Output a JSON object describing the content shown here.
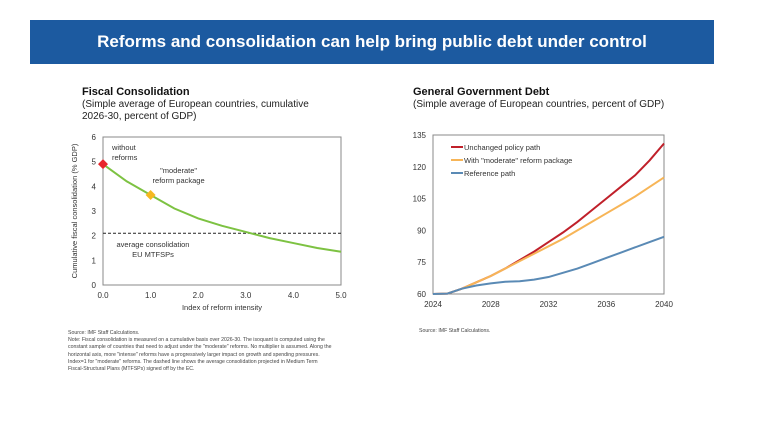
{
  "banner": {
    "title": "Reforms and consolidation can help bring public debt under control"
  },
  "left": {
    "title": "Fiscal Consolidation",
    "subtitle": "(Simple average of European countries, cumulative 2026-30, percent of GDP)",
    "source": "Source: IMF Staff Calculations.",
    "note": "Note: Fiscal consolidation is measured on a cumulative basis over 2026-30. The isoquant is computed using the constant sample of countries that need to adjust under the \"moderate\" reforms. No multiplier is assumed. Along the horizontal axis, more \"intense\" reforms have a progressively larger impact on growth and spending pressures. Index=1 for \"moderate\" reforms. The dashed line shows the average consolidation projected in Medium Term Fiscal-Structural Plans (MTFSPs) signed off by the EC."
  },
  "right": {
    "title": "General Government Debt",
    "subtitle": "(Simple average of European countries, percent of GDP)",
    "source": "Source: IMF Staff Calculations."
  },
  "chart_data": [
    {
      "type": "line",
      "xlabel": "Index of reform intensity",
      "ylabel": "Cumulative fiscal consolidation (% GDP)",
      "xlim": [
        0,
        5
      ],
      "ylim": [
        0,
        6
      ],
      "xticks": [
        "0.0",
        "1.0",
        "2.0",
        "3.0",
        "4.0",
        "5.0"
      ],
      "yticks": [
        "0",
        "1",
        "2",
        "3",
        "4",
        "5",
        "6"
      ],
      "x": [
        0,
        0.5,
        1,
        1.5,
        2,
        2.5,
        3,
        3.5,
        4,
        4.5,
        5
      ],
      "series": [
        {
          "values": [
            4.9,
            4.2,
            3.65,
            3.1,
            2.7,
            2.4,
            2.15,
            1.9,
            1.7,
            1.5,
            1.35
          ],
          "color": "#7dc242"
        }
      ],
      "reference_line": {
        "value": 2.1,
        "style": "dashed",
        "label": "average consolidation EU MTFSPs"
      },
      "points": [
        {
          "x": 0,
          "y": 4.9,
          "color": "#e8262b",
          "label": "without reforms"
        },
        {
          "x": 1,
          "y": 3.65,
          "color": "#f5b820",
          "label": "\"moderate\" reform package"
        }
      ],
      "grid": false
    },
    {
      "type": "line",
      "xlim": [
        2024,
        2040
      ],
      "ylim": [
        60,
        135
      ],
      "xticks": [
        "2024",
        "2028",
        "2032",
        "2036",
        "2040"
      ],
      "yticks": [
        "60",
        "75",
        "90",
        "105",
        "120",
        "135"
      ],
      "x": [
        2024,
        2025,
        2026,
        2027,
        2028,
        2029,
        2030,
        2031,
        2032,
        2033,
        2034,
        2035,
        2036,
        2037,
        2038,
        2039,
        2040
      ],
      "series": [
        {
          "name": "Unchanged policy path",
          "color": "#c0202a",
          "values": [
            60,
            60.2,
            62.5,
            65.5,
            68.5,
            72,
            76,
            80,
            84.5,
            89,
            94,
            99.5,
            105,
            110.5,
            116,
            123,
            131
          ]
        },
        {
          "name": "With \"moderate\" reform package",
          "color": "#f7b557",
          "values": [
            60,
            60.2,
            62.5,
            65.5,
            68.5,
            72,
            75.5,
            79,
            82.5,
            86,
            90,
            94,
            98,
            102,
            106,
            110.5,
            115
          ]
        },
        {
          "name": "Reference path",
          "color": "#5a8ab5",
          "values": [
            60,
            60.2,
            62.5,
            64,
            65,
            65.8,
            66,
            66.8,
            68,
            70,
            72,
            74.5,
            77,
            79.5,
            82,
            84.5,
            87
          ]
        }
      ],
      "legend": "top-left",
      "grid": false
    }
  ]
}
